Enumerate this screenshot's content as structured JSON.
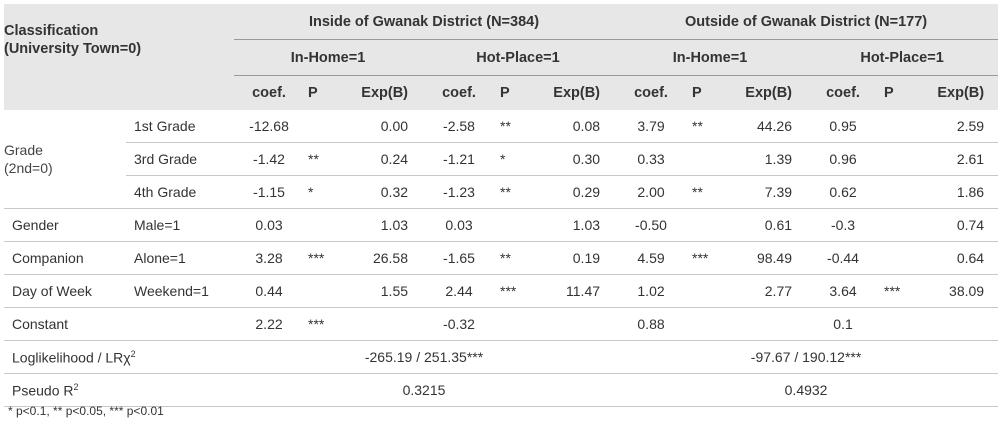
{
  "header": {
    "classification": "Classification",
    "classification_sub": "(University Town=0)",
    "group_inside": "Inside of Gwanak District (N=384)",
    "group_outside": "Outside of Gwanak District (N=177)",
    "in_home": "In-Home=1",
    "hot_place": "Hot-Place=1",
    "col_coef": "coef.",
    "col_p": "P",
    "col_exp": "Exp(B)"
  },
  "grade_label": "Grade",
  "grade_sub": "(2nd=0)",
  "rows": [
    {
      "group": "",
      "sub": "1st Grade",
      "v": [
        "-12.68",
        "",
        "0.00",
        "-2.58",
        "**",
        "0.08",
        "3.79",
        "**",
        "44.26",
        "0.95",
        "",
        "2.59"
      ]
    },
    {
      "group": "",
      "sub": "3rd Grade",
      "v": [
        "-1.42",
        "**",
        "0.24",
        "-1.21",
        "*",
        "0.30",
        "0.33",
        "",
        "1.39",
        "0.96",
        "",
        "2.61"
      ]
    },
    {
      "group": "",
      "sub": "4th Grade",
      "v": [
        "-1.15",
        "*",
        "0.32",
        "-1.23",
        "**",
        "0.29",
        "2.00",
        "**",
        "7.39",
        "0.62",
        "",
        "1.86"
      ]
    },
    {
      "group": "Gender",
      "sub": "Male=1",
      "v": [
        "0.03",
        "",
        "1.03",
        "0.03",
        "",
        "1.03",
        "-0.50",
        "",
        "0.61",
        "-0.3",
        "",
        "0.74"
      ]
    },
    {
      "group": "Companion",
      "sub": "Alone=1",
      "v": [
        "3.28",
        "***",
        "26.58",
        "-1.65",
        "**",
        "0.19",
        "4.59",
        "***",
        "98.49",
        "-0.44",
        "",
        "0.64"
      ]
    },
    {
      "group": "Day of Week",
      "sub": "Weekend=1",
      "v": [
        "0.44",
        "",
        "1.55",
        "2.44",
        "***",
        "11.47",
        "1.02",
        "",
        "2.77",
        "3.64",
        "***",
        "38.09"
      ]
    }
  ],
  "constant": {
    "label": "Constant",
    "v": [
      "2.22",
      "***",
      "",
      "-0.32",
      "",
      "",
      "0.88",
      "",
      "",
      "0.1",
      "",
      ""
    ]
  },
  "loglik": {
    "label": "Loglikelihood / LRχ",
    "sup": "2",
    "inside": "-265.19 / 251.35***",
    "outside": "-97.67 / 190.12***"
  },
  "pseudo": {
    "label": "Pseudo R",
    "sup": "2",
    "inside": "0.3215",
    "outside": "0.4932"
  },
  "footnote": "* p<0.1, ** p<0.05, *** p<0.01"
}
